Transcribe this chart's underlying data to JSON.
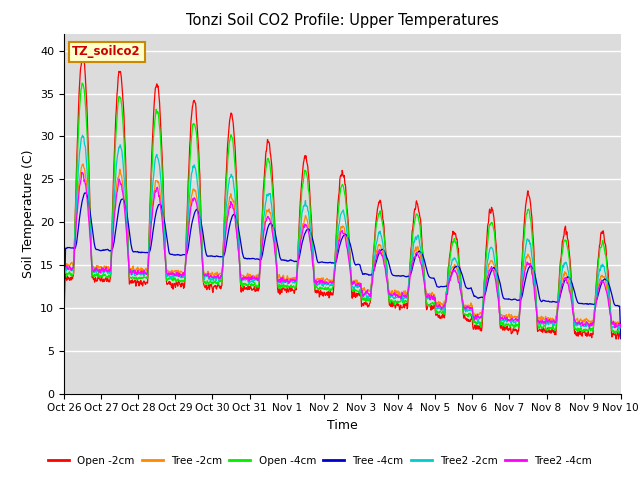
{
  "title": "Tonzi Soil CO2 Profile: Upper Temperatures",
  "xlabel": "Time",
  "ylabel": "Soil Temperature (C)",
  "ylim": [
    0,
    42
  ],
  "yticks": [
    0,
    5,
    10,
    15,
    20,
    25,
    30,
    35,
    40
  ],
  "plot_bg_color": "#dcdcdc",
  "annotation_text": "TZ_soilco2",
  "annotation_box_color": "#ffffcc",
  "annotation_box_edge": "#cc8800",
  "series": [
    {
      "name": "Open -2cm",
      "color": "#ff0000"
    },
    {
      "name": "Tree -2cm",
      "color": "#ff8800"
    },
    {
      "name": "Open -4cm",
      "color": "#00ee00"
    },
    {
      "name": "Tree -4cm",
      "color": "#0000cc"
    },
    {
      "name": "Tree2 -2cm",
      "color": "#00cccc"
    },
    {
      "name": "Tree2 -4cm",
      "color": "#ff00ff"
    }
  ],
  "xtick_labels": [
    "Oct 26",
    "Oct 27",
    "Oct 28",
    "Oct 29",
    "Oct 30",
    "Oct 31",
    "Nov 1",
    "Nov 2",
    "Nov 3",
    "Nov 4",
    "Nov 5",
    "Nov 6",
    "Nov 7",
    "Nov 8",
    "Nov 9",
    "Nov 10"
  ],
  "n_days": 15,
  "pts_per_day": 96
}
